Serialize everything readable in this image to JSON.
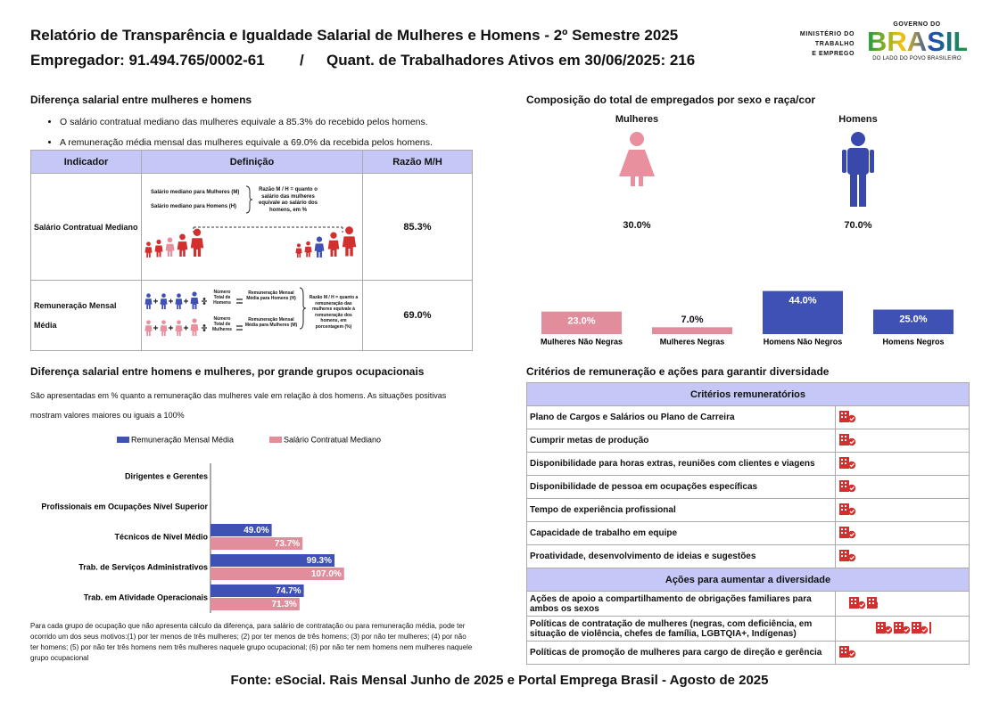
{
  "header": {
    "title": "Relatório de Transparência e Igualdade Salarial de Mulheres e Homens - 2º Semestre 2025",
    "employer": "Empregador: 91.494.765/0002-61",
    "separator": "/",
    "workers": "Quant. de Trabalhadores Ativos em 30/06/2025: 216"
  },
  "logos": {
    "ministry": [
      "MINISTÉRIO DO",
      "TRABALHO",
      "E EMPREGO"
    ],
    "government": "GOVERNO DO",
    "brand": "BRASIL",
    "slogan": "DO LADO DO POVO BRASILEIRO"
  },
  "salary_gap": {
    "title": "Diferença salarial entre mulheres e homens",
    "bullets": [
      "O salário contratual mediano das mulheres equivale a 85.3% do recebido pelos homens.",
      "A remuneração média mensal das mulheres equivale a 69.0% da recebida pelos homens."
    ],
    "table": {
      "headers": [
        "Indicador",
        "Definição",
        "Razão M/H"
      ],
      "rows": [
        [
          "Salário Contratual Mediano",
          "85.3%"
        ],
        [
          "Remuneração Mensal Média",
          "69.0%"
        ]
      ]
    },
    "definitions": [
      {
        "female_label": "Salário mediano para Mulheres (M)",
        "male_label": "Salário mediano para Homens (H)",
        "ratio": "Razão M / H = quanto o salário das mulheres equivale ao salário dos homens, em %"
      },
      {
        "male_count": "Número Total de Homens",
        "male_pay": "Remuneração Mensal Média para Homens (H)",
        "female_count": "Número Total de Mulheres",
        "female_pay": "Remuneração Mensal Média para Mulheres (M)",
        "ratio": "Razão M / H = quanto a remuneração das mulheres equivale à remuneração dos homens, em porcentagem (%)"
      }
    ]
  },
  "composition": {
    "title": "Composição do total de empregados por sexo e raça/cor",
    "female_label": "Mulheres",
    "male_label": "Homens",
    "female_share": "30.0%",
    "male_share": "70.0%"
  },
  "chart_data": [
    {
      "type": "bar",
      "categories": [
        "Mulheres Não Negras",
        "Mulheres Negras",
        "Homens Não Negros",
        "Homens Negros"
      ],
      "values": [
        23.0,
        7.0,
        44.0,
        25.0
      ],
      "value_labels": [
        "23.0%",
        "7.0%",
        "44.0%",
        "25.0%"
      ],
      "colors": [
        "#e28d9c",
        "#e28d9c",
        "#3f51b5",
        "#3f51b5"
      ]
    },
    {
      "type": "hbar",
      "title": "Diferença salarial entre homens e mulheres, por grande grupos ocupacionais",
      "subtitle": "São apresentadas em % quanto a remuneração das mulheres vale em relação à dos homens. As situações positivas mostram valores maiores ou iguais a 100%",
      "categories": [
        "Dirigentes e Gerentes",
        "Profissionais em Ocupações Nível Superior",
        "Técnicos de Nível Médio",
        "Trab. de Serviços Administrativos",
        "Trab. em Atividade Operacionais"
      ],
      "series": [
        {
          "name": "Remuneração Mensal Média",
          "color": "#3f51b5",
          "values": [
            null,
            null,
            49.0,
            99.3,
            74.7
          ],
          "value_labels": [
            null,
            null,
            "49.0%",
            "99.3%",
            "74.7%"
          ]
        },
        {
          "name": "Salário Contratual Mediano",
          "color": "#e28d9c",
          "values": [
            null,
            null,
            73.7,
            107.0,
            71.3
          ],
          "value_labels": [
            null,
            null,
            "73.7%",
            "107.0%",
            "71.3%"
          ]
        }
      ],
      "footnote": "Para cada grupo de ocupação que não apresenta cálculo da diferença, para salário de contratação ou para remuneração média, pode ter ocorrido um dos seus motivos:(1) por ter menos de três mulheres; (2) por ter menos de três homens; (3) por não ter mulheres; (4) por não ter homens; (5) por não ter três homens nem três mulheres naquele grupo ocupacional; (6) por não ter nem homens nem mulheres naquele grupo ocupacional"
    }
  ],
  "criteria": {
    "title": "Critérios de remuneração e ações para garantir diversidade",
    "sections": [
      {
        "header": "Critérios remuneratórios",
        "rows": [
          "Plano de Cargos e Salários ou Plano de Carreira",
          "Cumprir metas de produção",
          "Disponibilidade para horas extras, reuniões com clientes e viagens",
          "Disponibilidade de pessoa em ocupações específicas",
          "Tempo de experiência profissional",
          "Capacidade de trabalho em equipe",
          "Proatividade, desenvolvimento de ideias e sugestões"
        ]
      },
      {
        "header": "Ações para aumentar a diversidade",
        "rows": [
          "Ações de apoio a compartilhamento de obrigações familiares para ambos os sexos",
          "Políticas de contratação de mulheres (negras, com deficiência, em situação de violência, chefes de família, LGBTQIA+, Indígenas)",
          "Políticas de promoção de mulheres para cargo de direção e gerência"
        ]
      }
    ]
  },
  "footer": "Fonte: eSocial. Rais Mensal Junho de 2025 e Portal Emprega Brasil - Agosto de 2025"
}
